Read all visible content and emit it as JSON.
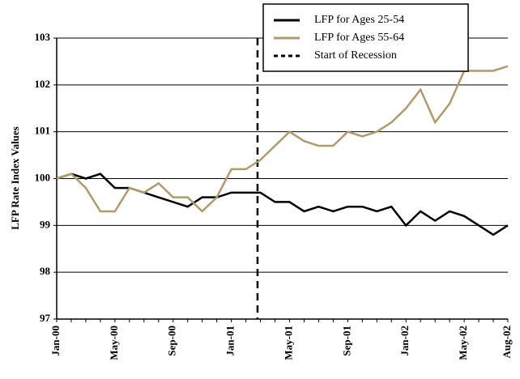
{
  "chart_data": {
    "type": "line",
    "y_label": "LFP Rate Index Values",
    "categories": [
      "Jan-00",
      null,
      null,
      null,
      "May-00",
      null,
      null,
      null,
      "Sep-00",
      null,
      null,
      null,
      "Jan-01",
      null,
      null,
      null,
      "May-01",
      null,
      null,
      null,
      "Sep-01",
      null,
      null,
      null,
      "Jan-02",
      null,
      null,
      null,
      "May-02",
      null,
      null,
      "Aug-02"
    ],
    "series": [
      {
        "name": "LFP for Ages 25-54",
        "color": "#000000",
        "values": [
          100,
          100.1,
          100,
          100.1,
          99.8,
          99.8,
          99.7,
          99.6,
          99.5,
          99.4,
          99.6,
          99.6,
          99.7,
          99.7,
          99.7,
          99.5,
          99.5,
          99.3,
          99.4,
          99.3,
          99.4,
          99.4,
          99.3,
          99.4,
          99.0,
          99.3,
          99.1,
          99.3,
          99.2,
          99.0,
          98.8,
          99.0
        ]
      },
      {
        "name": "LFP for Ages 55-64",
        "color": "#b09a6a",
        "values": [
          100,
          100.1,
          99.8,
          99.3,
          99.3,
          99.8,
          99.7,
          99.9,
          99.6,
          99.6,
          99.3,
          99.6,
          100.2,
          100.2,
          100.4,
          100.7,
          101.0,
          100.8,
          100.7,
          100.7,
          101.0,
          100.9,
          101.0,
          101.2,
          101.5,
          101.9,
          101.2,
          101.6,
          102.3,
          102.3,
          102.3,
          102.4
        ]
      }
    ],
    "vline": {
      "name": "Start of Recession",
      "index": 13.8,
      "color": "#000000"
    },
    "ylim": [
      97,
      103
    ],
    "yticks": [
      97,
      98,
      99,
      100,
      101,
      102,
      103
    ],
    "grid": true
  }
}
